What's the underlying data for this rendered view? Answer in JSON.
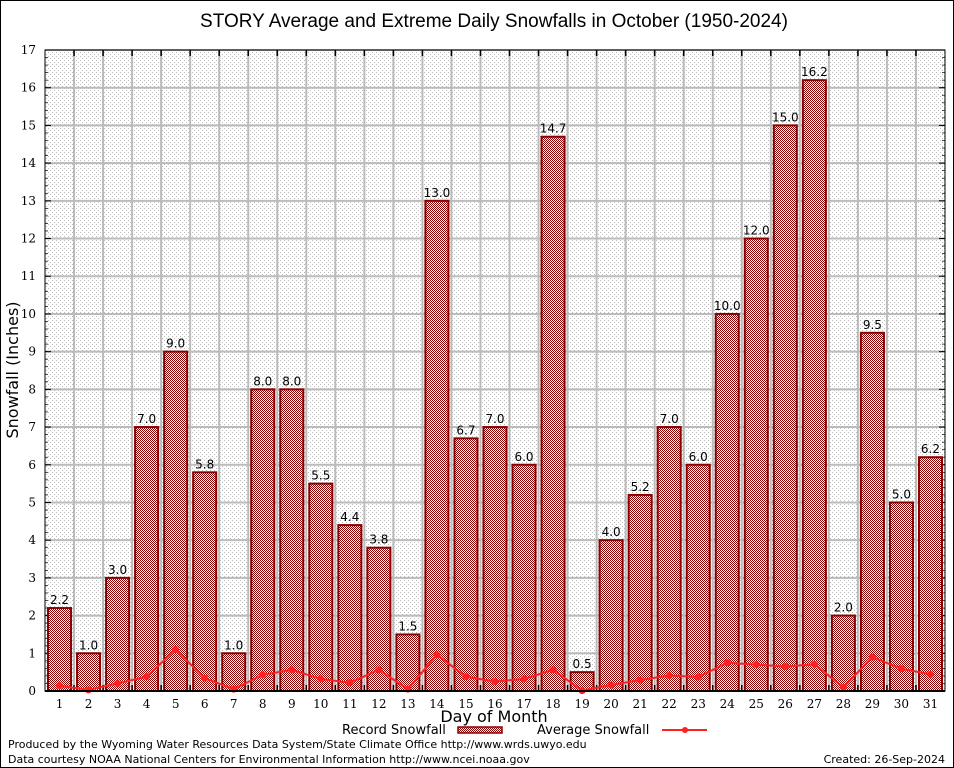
{
  "chart_data": {
    "type": "bar",
    "title": "STORY Average and Extreme Daily Snowfalls in October (1950-2024)",
    "xlabel": "Day of Month",
    "ylabel": "Snowfall (Inches)",
    "ylim": [
      0,
      17
    ],
    "yticks": [
      "0",
      "1",
      "2",
      "3",
      "4",
      "5",
      "6",
      "7",
      "8",
      "9",
      "10",
      "11",
      "12",
      "13",
      "14",
      "15",
      "16",
      "17"
    ],
    "grid": true,
    "categories": [
      "1",
      "2",
      "3",
      "4",
      "5",
      "6",
      "7",
      "8",
      "9",
      "10",
      "11",
      "12",
      "13",
      "14",
      "15",
      "16",
      "17",
      "18",
      "19",
      "20",
      "21",
      "22",
      "23",
      "24",
      "25",
      "26",
      "27",
      "28",
      "29",
      "30",
      "31"
    ],
    "series": [
      {
        "name": "Record Snowfall",
        "type": "bar",
        "color": "#8b0000",
        "values": [
          2.2,
          1.0,
          3.0,
          7.0,
          9.0,
          5.8,
          1.0,
          8.0,
          8.0,
          5.5,
          4.4,
          3.8,
          1.5,
          13.0,
          6.7,
          7.0,
          6.0,
          14.7,
          0.5,
          4.0,
          5.2,
          7.0,
          6.0,
          10.0,
          12.0,
          15.0,
          16.2,
          2.0,
          9.5,
          5.0,
          6.2
        ],
        "labels": [
          "2.2",
          "1.0",
          "3.0",
          "7.0",
          "9.0",
          "5.8",
          "1.0",
          "8.0",
          "8.0",
          "5.5",
          "4.4",
          "3.8",
          "1.5",
          "13.0",
          "6.7",
          "7.0",
          "6.0",
          "14.7",
          "0.5",
          "4.0",
          "5.2",
          "7.0",
          "6.0",
          "10.0",
          "12.0",
          "15.0",
          "16.2",
          "2.0",
          "9.5",
          "5.0",
          "6.2"
        ]
      },
      {
        "name": "Average Snowfall",
        "type": "line",
        "color": "#ff2020",
        "values": [
          0.14,
          0.03,
          0.2,
          0.38,
          1.1,
          0.34,
          0.05,
          0.43,
          0.56,
          0.32,
          0.22,
          0.56,
          0.05,
          0.96,
          0.38,
          0.25,
          0.32,
          0.56,
          0.01,
          0.16,
          0.29,
          0.41,
          0.37,
          0.75,
          0.7,
          0.65,
          0.71,
          0.1,
          0.9,
          0.59,
          0.44
        ]
      }
    ],
    "legend": {
      "position": "bottom-center",
      "entries": [
        "Record Snowfall",
        "Average Snowfall"
      ]
    }
  },
  "footer": {
    "line1": "Produced by the Wyoming Water Resources Data System/State Climate Office http://www.wrds.uwyo.edu",
    "line2": "Data courtesy NOAA National Centers for Environmental Information http://www.ncei.noaa.gov",
    "created": "Created: 26-Sep-2024"
  }
}
